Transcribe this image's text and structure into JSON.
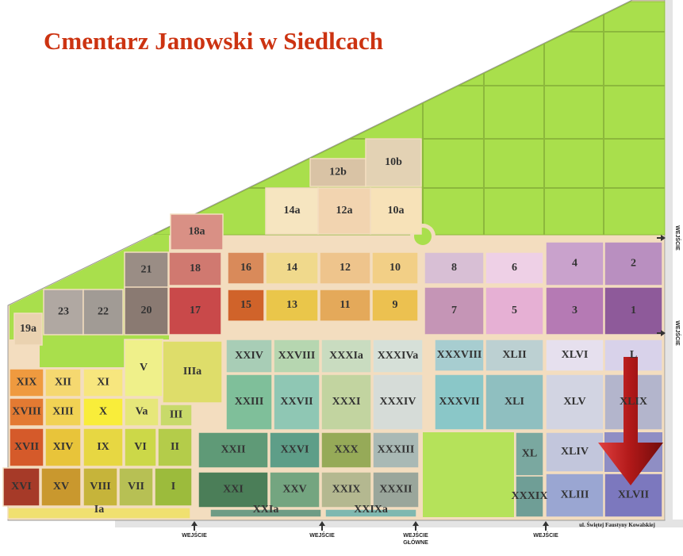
{
  "title": "Cmentarz Janowski w Siedlcach",
  "sections": [
    "12b",
    "10b",
    "14a",
    "12a",
    "10a",
    "18a",
    "21",
    "18",
    "20",
    "17",
    "23",
    "22",
    "19a",
    "16",
    "14",
    "12",
    "10",
    "15",
    "13",
    "11",
    "9",
    "8",
    "6",
    "7",
    "5",
    "4",
    "2",
    "3",
    "1",
    "XLVI",
    "L",
    "XLV",
    "XLIX",
    "XLIV",
    "XLIII",
    "XLVII",
    "XLII",
    "XXXVIII",
    "XLI",
    "XXXVII",
    "XL",
    "XXXIX",
    "XXIV",
    "XXVIII",
    "XXXIa",
    "XXXIVa",
    "XXIII",
    "XXVII",
    "XXXI",
    "XXXIV",
    "XXII",
    "XXVI",
    "XXX",
    "XXXIII",
    "XXI",
    "XXV",
    "XXIX",
    "XXXII",
    "XXIa",
    "XXIXa",
    "IIIa",
    "V",
    "XIX",
    "XII",
    "XI",
    "XVIII",
    "XIII",
    "X",
    "Va",
    "III",
    "XVII",
    "XIV",
    "IX",
    "VI",
    "II",
    "XVI",
    "XV",
    "VIII",
    "VII",
    "I",
    "Ia"
  ],
  "entrances": [
    [
      "WEJŚCIE"
    ],
    [
      "WEJŚCIE"
    ],
    [
      "WEJŚCIE",
      "GŁÓWNE"
    ],
    [
      "WEJŚCIE"
    ]
  ],
  "side_entrances": [
    "WEJŚCIE",
    "WEJŚCIE"
  ],
  "street": "ul. Świętej Faustyny Kowalskiej"
}
